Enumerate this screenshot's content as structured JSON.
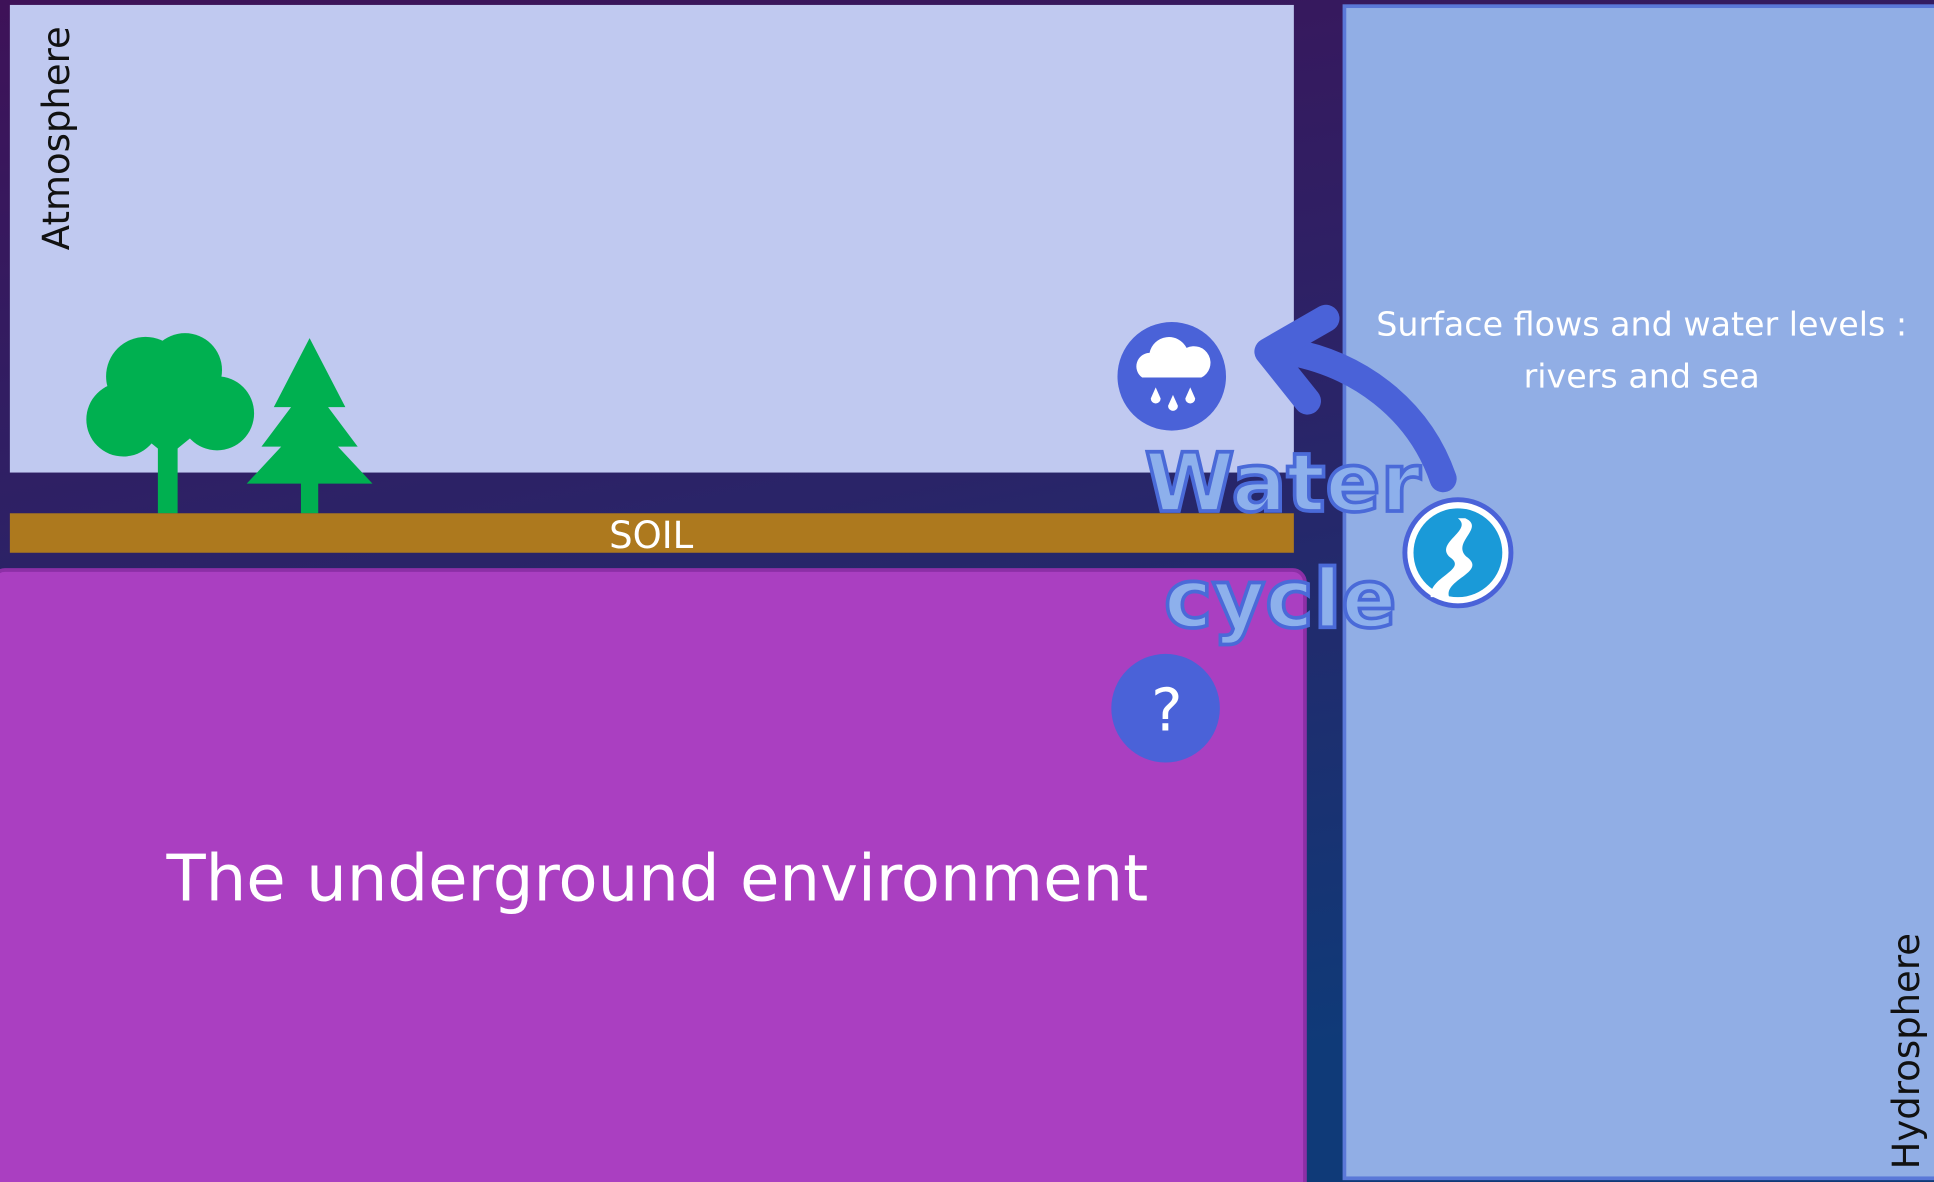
{
  "panels": {
    "atmosphere": {
      "label": "Atmosphere"
    },
    "soil": {
      "label": "SOIL"
    },
    "underground": {
      "title": "The underground environment"
    },
    "hydrosphere": {
      "label": "Hydrosphere",
      "description": [
        "Surface flows  and water levels :",
        "rivers and sea"
      ]
    }
  },
  "water_cycle": {
    "title": [
      "Water",
      "cycle"
    ]
  },
  "unknown_icon": {
    "label": "?"
  }
}
